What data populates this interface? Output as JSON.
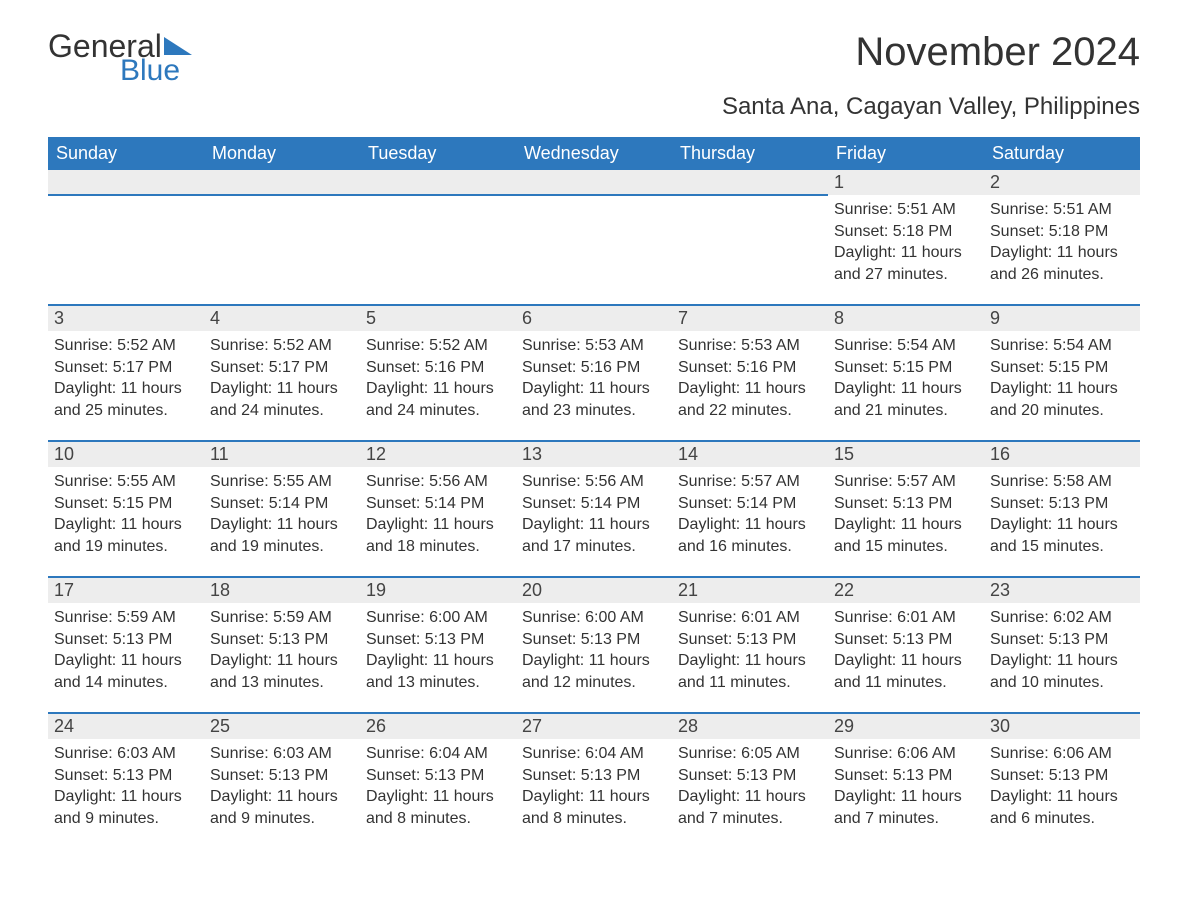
{
  "logo": {
    "word1": "General",
    "word2": "Blue"
  },
  "title": "November 2024",
  "location": "Santa Ana, Cagayan Valley, Philippines",
  "colors": {
    "header_bg": "#2d78bd",
    "header_fg": "#ffffff",
    "row_divider": "#2d78bd",
    "daynum_bg": "#ededed",
    "page_bg": "#ffffff",
    "text": "#333333"
  },
  "weekdays": [
    "Sunday",
    "Monday",
    "Tuesday",
    "Wednesday",
    "Thursday",
    "Friday",
    "Saturday"
  ],
  "labels": {
    "sunrise": "Sunrise:",
    "sunset": "Sunset:",
    "daylight": "Daylight:"
  },
  "weeks": [
    [
      null,
      null,
      null,
      null,
      null,
      {
        "d": "1",
        "sunrise": "5:51 AM",
        "sunset": "5:18 PM",
        "daylight": "11 hours and 27 minutes."
      },
      {
        "d": "2",
        "sunrise": "5:51 AM",
        "sunset": "5:18 PM",
        "daylight": "11 hours and 26 minutes."
      }
    ],
    [
      {
        "d": "3",
        "sunrise": "5:52 AM",
        "sunset": "5:17 PM",
        "daylight": "11 hours and 25 minutes."
      },
      {
        "d": "4",
        "sunrise": "5:52 AM",
        "sunset": "5:17 PM",
        "daylight": "11 hours and 24 minutes."
      },
      {
        "d": "5",
        "sunrise": "5:52 AM",
        "sunset": "5:16 PM",
        "daylight": "11 hours and 24 minutes."
      },
      {
        "d": "6",
        "sunrise": "5:53 AM",
        "sunset": "5:16 PM",
        "daylight": "11 hours and 23 minutes."
      },
      {
        "d": "7",
        "sunrise": "5:53 AM",
        "sunset": "5:16 PM",
        "daylight": "11 hours and 22 minutes."
      },
      {
        "d": "8",
        "sunrise": "5:54 AM",
        "sunset": "5:15 PM",
        "daylight": "11 hours and 21 minutes."
      },
      {
        "d": "9",
        "sunrise": "5:54 AM",
        "sunset": "5:15 PM",
        "daylight": "11 hours and 20 minutes."
      }
    ],
    [
      {
        "d": "10",
        "sunrise": "5:55 AM",
        "sunset": "5:15 PM",
        "daylight": "11 hours and 19 minutes."
      },
      {
        "d": "11",
        "sunrise": "5:55 AM",
        "sunset": "5:14 PM",
        "daylight": "11 hours and 19 minutes."
      },
      {
        "d": "12",
        "sunrise": "5:56 AM",
        "sunset": "5:14 PM",
        "daylight": "11 hours and 18 minutes."
      },
      {
        "d": "13",
        "sunrise": "5:56 AM",
        "sunset": "5:14 PM",
        "daylight": "11 hours and 17 minutes."
      },
      {
        "d": "14",
        "sunrise": "5:57 AM",
        "sunset": "5:14 PM",
        "daylight": "11 hours and 16 minutes."
      },
      {
        "d": "15",
        "sunrise": "5:57 AM",
        "sunset": "5:13 PM",
        "daylight": "11 hours and 15 minutes."
      },
      {
        "d": "16",
        "sunrise": "5:58 AM",
        "sunset": "5:13 PM",
        "daylight": "11 hours and 15 minutes."
      }
    ],
    [
      {
        "d": "17",
        "sunrise": "5:59 AM",
        "sunset": "5:13 PM",
        "daylight": "11 hours and 14 minutes."
      },
      {
        "d": "18",
        "sunrise": "5:59 AM",
        "sunset": "5:13 PM",
        "daylight": "11 hours and 13 minutes."
      },
      {
        "d": "19",
        "sunrise": "6:00 AM",
        "sunset": "5:13 PM",
        "daylight": "11 hours and 13 minutes."
      },
      {
        "d": "20",
        "sunrise": "6:00 AM",
        "sunset": "5:13 PM",
        "daylight": "11 hours and 12 minutes."
      },
      {
        "d": "21",
        "sunrise": "6:01 AM",
        "sunset": "5:13 PM",
        "daylight": "11 hours and 11 minutes."
      },
      {
        "d": "22",
        "sunrise": "6:01 AM",
        "sunset": "5:13 PM",
        "daylight": "11 hours and 11 minutes."
      },
      {
        "d": "23",
        "sunrise": "6:02 AM",
        "sunset": "5:13 PM",
        "daylight": "11 hours and 10 minutes."
      }
    ],
    [
      {
        "d": "24",
        "sunrise": "6:03 AM",
        "sunset": "5:13 PM",
        "daylight": "11 hours and 9 minutes."
      },
      {
        "d": "25",
        "sunrise": "6:03 AM",
        "sunset": "5:13 PM",
        "daylight": "11 hours and 9 minutes."
      },
      {
        "d": "26",
        "sunrise": "6:04 AM",
        "sunset": "5:13 PM",
        "daylight": "11 hours and 8 minutes."
      },
      {
        "d": "27",
        "sunrise": "6:04 AM",
        "sunset": "5:13 PM",
        "daylight": "11 hours and 8 minutes."
      },
      {
        "d": "28",
        "sunrise": "6:05 AM",
        "sunset": "5:13 PM",
        "daylight": "11 hours and 7 minutes."
      },
      {
        "d": "29",
        "sunrise": "6:06 AM",
        "sunset": "5:13 PM",
        "daylight": "11 hours and 7 minutes."
      },
      {
        "d": "30",
        "sunrise": "6:06 AM",
        "sunset": "5:13 PM",
        "daylight": "11 hours and 6 minutes."
      }
    ]
  ]
}
